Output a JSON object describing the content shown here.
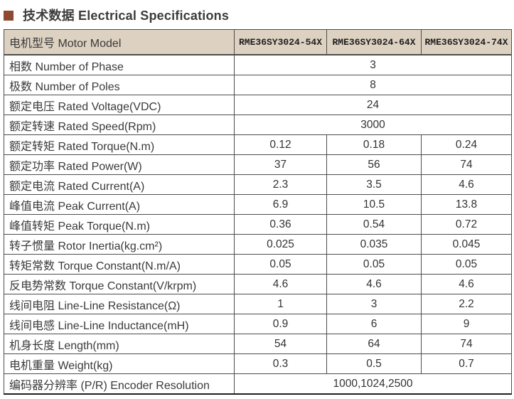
{
  "header": {
    "title": "技术数据 Electrical Specifications"
  },
  "colors": {
    "accent_square": "#8e4a31",
    "table_header_bg": "#ddd1c1",
    "table_border": "#4d4d4d",
    "text": "#333333"
  },
  "table": {
    "header": {
      "label": "电机型号 Motor Model",
      "models": [
        "RME36SY3024-54X",
        "RME36SY3024-64X",
        "RME36SY3024-74X"
      ]
    },
    "rows": [
      {
        "label": "相数 Number of Phase",
        "values": [
          "3"
        ]
      },
      {
        "label": "极数 Number of Poles",
        "values": [
          "8"
        ]
      },
      {
        "label": "额定电压 Rated Voltage(VDC)",
        "values": [
          "24"
        ]
      },
      {
        "label": "额定转速 Rated Speed(Rpm)",
        "values": [
          "3000"
        ]
      },
      {
        "label": "额定转矩 Rated Torque(N.m)",
        "values": [
          "0.12",
          "0.18",
          "0.24"
        ]
      },
      {
        "label": "额定功率 Rated Power(W)",
        "values": [
          "37",
          "56",
          "74"
        ]
      },
      {
        "label": "额定电流 Rated Current(A)",
        "values": [
          "2.3",
          "3.5",
          "4.6"
        ]
      },
      {
        "label": "峰值电流 Peak Current(A)",
        "values": [
          "6.9",
          "10.5",
          "13.8"
        ]
      },
      {
        "label": "峰值转矩 Peak Torque(N.m)",
        "values": [
          "0.36",
          "0.54",
          "0.72"
        ]
      },
      {
        "label": "转子惯量 Rotor Inertia(kg.cm²)",
        "values": [
          "0.025",
          "0.035",
          "0.045"
        ]
      },
      {
        "label": "转矩常数 Torque Constant(N.m/A)",
        "values": [
          "0.05",
          "0.05",
          "0.05"
        ]
      },
      {
        "label": "反电势常数 Torque Constant(V/krpm)",
        "values": [
          "4.6",
          "4.6",
          "4.6"
        ]
      },
      {
        "label": "线间电阻 Line-Line Resistance(Ω)",
        "values": [
          "1",
          "3",
          "2.2"
        ]
      },
      {
        "label": "线间电感 Line-Line Inductance(mH)",
        "values": [
          "0.9",
          "6",
          "9"
        ]
      },
      {
        "label": "机身长度 Length(mm)",
        "values": [
          "54",
          "64",
          "74"
        ]
      },
      {
        "label": "电机重量 Weight(kg)",
        "values": [
          "0.3",
          "0.5",
          "0.7"
        ]
      },
      {
        "label": "编码器分辨率 (P/R) Encoder Resolution",
        "values": [
          "1000,1024,2500"
        ]
      }
    ]
  }
}
